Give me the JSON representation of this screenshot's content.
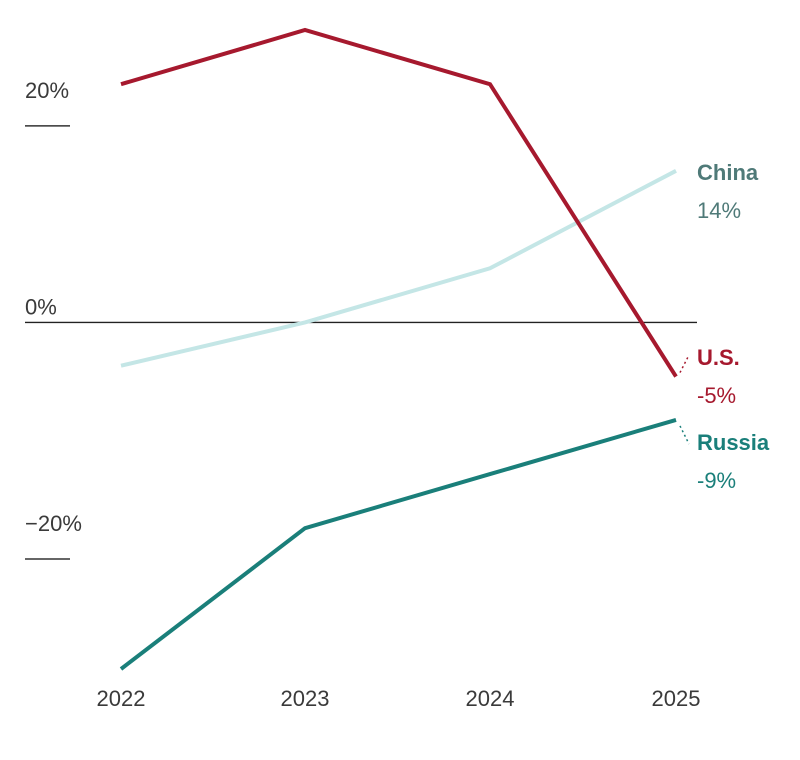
{
  "chart_data": {
    "type": "line",
    "x": [
      "2022",
      "2023",
      "2024",
      "2025"
    ],
    "y_ticks": [
      {
        "value": 20,
        "label": "20%"
      },
      {
        "value": 0,
        "label": "0%"
      },
      {
        "value": -20,
        "label": "−20%"
      }
    ],
    "ylim": [
      -32,
      27
    ],
    "grid": false,
    "zero_line": true,
    "series": [
      {
        "name": "U.S.",
        "value_label": "-5%",
        "color": "#a6192e",
        "values": [
          22,
          27,
          22,
          -5
        ],
        "width": 4
      },
      {
        "name": "China",
        "value_label": "14%",
        "color": "#c4e6e6",
        "values": [
          -4,
          0,
          5,
          14
        ],
        "width": 4
      },
      {
        "name": "Russia",
        "value_label": "-9%",
        "color": "#1a7f7a",
        "values": [
          -32,
          -19,
          -14,
          -9
        ],
        "width": 4
      }
    ],
    "label_colors": {
      "U.S.": "#a6192e",
      "China": "#4f7a78",
      "Russia": "#1a7f7a"
    }
  }
}
